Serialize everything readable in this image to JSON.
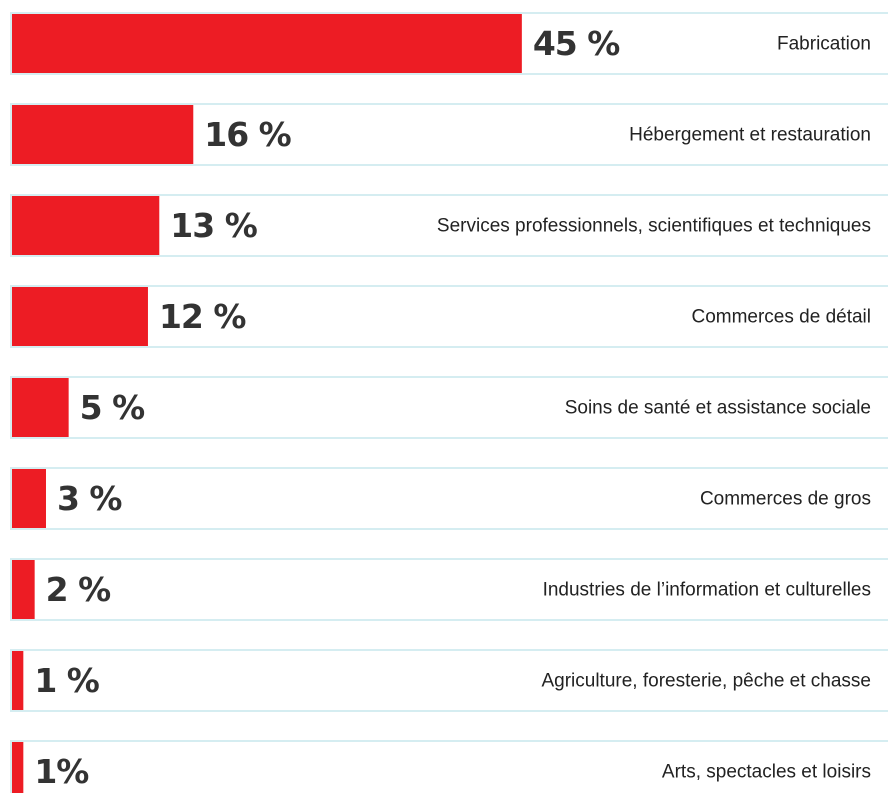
{
  "chart_data": {
    "type": "bar",
    "orientation": "horizontal",
    "color": "#ed1c24",
    "categories": [
      "Fabrication",
      "Hébergement et restauration",
      "Services professionnels, scientifiques et techniques",
      "Commerces de détail",
      "Soins de santé et assistance sociale",
      "Commerces de gros",
      "Industries de l’information et culturelles",
      "Agriculture, foresterie, pêche et chasse",
      "Arts, spectacles et loisirs"
    ],
    "values": [
      45,
      16,
      13,
      12,
      5,
      3,
      2,
      1,
      1
    ],
    "value_labels": [
      "45 %",
      "16 %",
      "13 %",
      "12 %",
      "5 %",
      "3 %",
      "2 %",
      "1 %",
      "1%"
    ]
  }
}
